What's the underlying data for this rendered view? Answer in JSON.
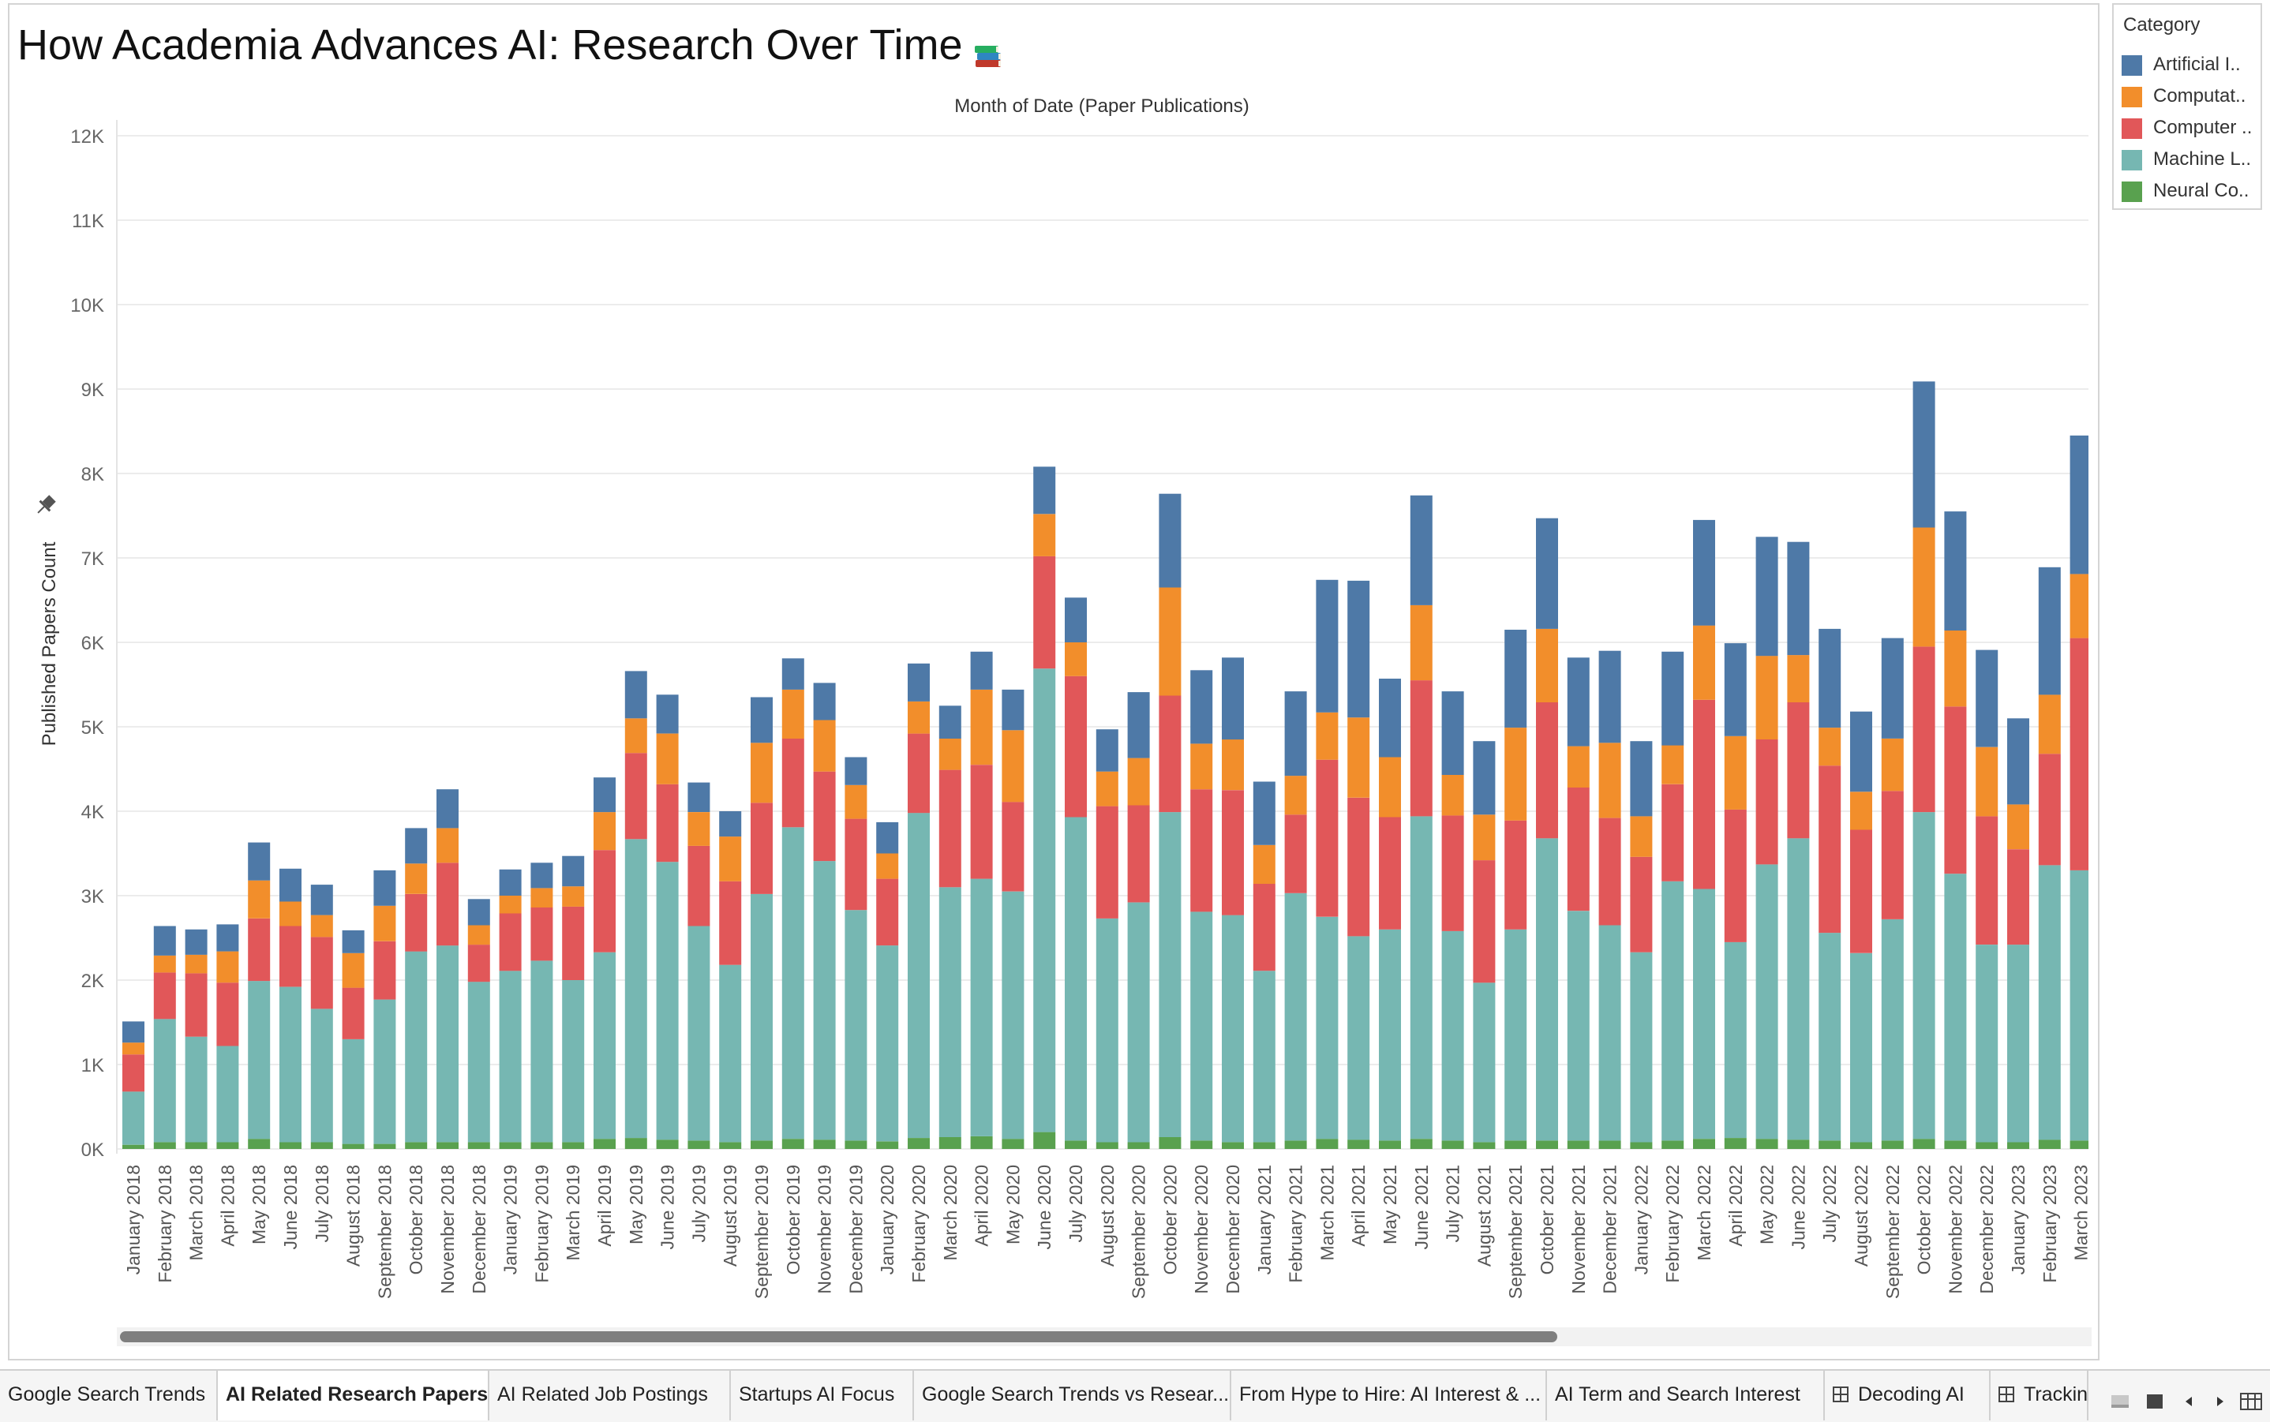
{
  "title": "How Academia Advances AI: Research Over Time",
  "title_emoji": "books-icon",
  "colors": {
    "artificial_intelligence": "#4e79a7",
    "computation_language": "#f28e2b",
    "computer_vision": "#e15759",
    "machine_learning": "#76b7b2",
    "neural_computing": "#59a14f"
  },
  "legend": {
    "title": "Category",
    "items": [
      {
        "label": "Artificial I..",
        "color": "#4e79a7"
      },
      {
        "label": "Computat..",
        "color": "#f28e2b"
      },
      {
        "label": "Computer ..",
        "color": "#e15759"
      },
      {
        "label": "Machine L..",
        "color": "#76b7b2"
      },
      {
        "label": "Neural Co..",
        "color": "#59a14f"
      }
    ]
  },
  "tabs": [
    {
      "label": "Google Search Trends",
      "active": false,
      "icon": ""
    },
    {
      "label": "AI Related Research Papers",
      "active": true,
      "icon": ""
    },
    {
      "label": "AI Related Job Postings",
      "active": false,
      "icon": ""
    },
    {
      "label": "Startups AI Focus",
      "active": false,
      "icon": ""
    },
    {
      "label": "Google Search Trends vs Resear...",
      "active": false,
      "icon": ""
    },
    {
      "label": "From Hype to Hire: AI Interest & ...",
      "active": false,
      "icon": ""
    },
    {
      "label": "AI Term and Search Interest",
      "active": false,
      "icon": ""
    },
    {
      "label": "Decoding AI",
      "active": false,
      "icon": "grid-icon"
    },
    {
      "label": "Trackin",
      "active": false,
      "icon": "grid-icon"
    }
  ],
  "chart_data": {
    "type": "bar",
    "stacked": true,
    "title": "Month of Date (Paper Publications)",
    "xlabel": "Month of Date (Paper Publications)",
    "ylabel": "Published Papers Count",
    "ylim": [
      0,
      12000
    ],
    "yticks": [
      "0K",
      "1K",
      "2K",
      "3K",
      "4K",
      "5K",
      "6K",
      "7K",
      "8K",
      "9K",
      "10K",
      "11K",
      "12K"
    ],
    "grid": true,
    "legend_position": "right",
    "categories": [
      "January 2018",
      "February 2018",
      "March 2018",
      "April 2018",
      "May 2018",
      "June 2018",
      "July 2018",
      "August 2018",
      "September 2018",
      "October 2018",
      "November 2018",
      "December 2018",
      "January 2019",
      "February 2019",
      "March 2019",
      "April 2019",
      "May 2019",
      "June 2019",
      "July 2019",
      "August 2019",
      "September 2019",
      "October 2019",
      "November 2019",
      "December 2019",
      "January 2020",
      "February 2020",
      "March 2020",
      "April 2020",
      "May 2020",
      "June 2020",
      "July 2020",
      "August 2020",
      "September 2020",
      "October 2020",
      "November 2020",
      "December 2020",
      "January 2021",
      "February 2021",
      "March 2021",
      "April 2021",
      "May 2021",
      "June 2021",
      "July 2021",
      "August 2021",
      "September 2021",
      "October 2021",
      "November 2021",
      "December 2021",
      "January 2022",
      "February 2022",
      "March 2022",
      "April 2022",
      "May 2022",
      "June 2022",
      "July 2022",
      "August 2022",
      "September 2022",
      "October 2022",
      "November 2022",
      "December 2022",
      "January 2023",
      "February 2023",
      "March 2023"
    ],
    "series": [
      {
        "name": "Neural Co..",
        "color": "#59a14f",
        "values": [
          50,
          80,
          80,
          80,
          120,
          80,
          80,
          60,
          60,
          80,
          80,
          80,
          80,
          80,
          80,
          120,
          130,
          110,
          100,
          80,
          100,
          120,
          110,
          100,
          90,
          130,
          140,
          150,
          120,
          200,
          100,
          80,
          80,
          140,
          100,
          80,
          80,
          100,
          120,
          110,
          100,
          120,
          100,
          80,
          100,
          100,
          100,
          100,
          80,
          100,
          120,
          130,
          120,
          110,
          100,
          80,
          100,
          120,
          100,
          80,
          80,
          110,
          100
        ]
      },
      {
        "name": "Machine L..",
        "color": "#76b7b2",
        "values": [
          630,
          1460,
          1250,
          1140,
          1870,
          1840,
          1580,
          1240,
          1710,
          2260,
          2330,
          1900,
          2030,
          2150,
          1920,
          2210,
          3540,
          3290,
          2540,
          2100,
          2920,
          3690,
          3300,
          2730,
          2320,
          3850,
          2960,
          3050,
          2930,
          5490,
          3830,
          2650,
          2840,
          3850,
          2710,
          2690,
          2030,
          2930,
          2630,
          2410,
          2500,
          3820,
          2480,
          1890,
          2500,
          3580,
          2720,
          2550,
          2250,
          3070,
          2960,
          2320,
          3250,
          3570,
          2460,
          2240,
          2620,
          3870,
          3160,
          2340,
          2340,
          3250,
          3200
        ]
      },
      {
        "name": "Computer ..",
        "color": "#e15759",
        "values": [
          440,
          550,
          750,
          750,
          740,
          720,
          850,
          610,
          690,
          680,
          980,
          440,
          680,
          630,
          870,
          1210,
          1020,
          920,
          950,
          990,
          1080,
          1050,
          1060,
          1080,
          790,
          940,
          1390,
          1350,
          1060,
          1330,
          1670,
          1330,
          1150,
          1380,
          1450,
          1480,
          1030,
          930,
          1860,
          1640,
          1330,
          1610,
          1370,
          1450,
          1290,
          1610,
          1460,
          1270,
          1130,
          1150,
          2240,
          1570,
          1480,
          1610,
          1980,
          1460,
          1520,
          1960,
          1980,
          1520,
          1130,
          1320,
          2750
        ]
      },
      {
        "name": "Computat..",
        "color": "#f28e2b",
        "values": [
          140,
          200,
          220,
          370,
          450,
          290,
          260,
          410,
          420,
          360,
          410,
          230,
          210,
          230,
          240,
          450,
          410,
          600,
          400,
          530,
          710,
          580,
          610,
          400,
          300,
          380,
          370,
          890,
          850,
          500,
          400,
          410,
          560,
          1280,
          540,
          600,
          460,
          460,
          560,
          950,
          710,
          890,
          480,
          540,
          1100,
          870,
          490,
          890,
          480,
          460,
          880,
          870,
          990,
          560,
          450,
          450,
          620,
          1410,
          900,
          820,
          530,
          700,
          760
        ]
      },
      {
        "name": "Artificial I..",
        "color": "#4e79a7",
        "values": [
          250,
          350,
          300,
          320,
          450,
          390,
          360,
          270,
          420,
          420,
          460,
          310,
          310,
          300,
          360,
          410,
          560,
          460,
          350,
          300,
          540,
          370,
          440,
          330,
          370,
          450,
          390,
          450,
          480,
          560,
          530,
          500,
          780,
          1110,
          870,
          970,
          750,
          1000,
          1570,
          1620,
          930,
          1300,
          990,
          870,
          1160,
          1310,
          1050,
          1090,
          890,
          1110,
          1250,
          1100,
          1410,
          1340,
          1170,
          950,
          1190,
          1730,
          1410,
          1150,
          1020,
          1510,
          1640
        ]
      }
    ]
  },
  "scrollbar": {
    "thumb_fraction": 0.73
  },
  "controls": [
    "show-sheets-icon",
    "filmstrip-icon",
    "scroll-left-icon",
    "scroll-right-icon",
    "tab-list-icon"
  ]
}
